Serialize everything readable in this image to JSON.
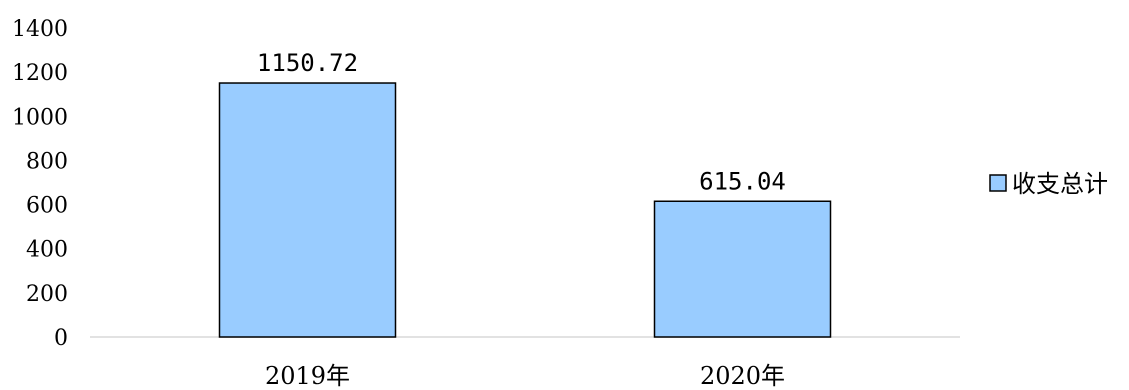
{
  "chart_data": {
    "type": "bar",
    "categories": [
      "2019年",
      "2020年"
    ],
    "series": [
      {
        "name": "收支总计",
        "values": [
          1150.72,
          615.04
        ]
      }
    ],
    "data_labels": [
      "1150.72",
      "615.04"
    ],
    "y_ticks": [
      "0",
      "200",
      "400",
      "600",
      "800",
      "1000",
      "1200",
      "1400"
    ],
    "ylim": [
      0,
      1400
    ],
    "title": "",
    "xlabel": "",
    "ylabel": "",
    "grid": false,
    "legend_position": "right",
    "colors": {
      "bar_fill": "#99CCFF",
      "bar_stroke": "#000000",
      "axis": "#D9D9D9"
    }
  }
}
